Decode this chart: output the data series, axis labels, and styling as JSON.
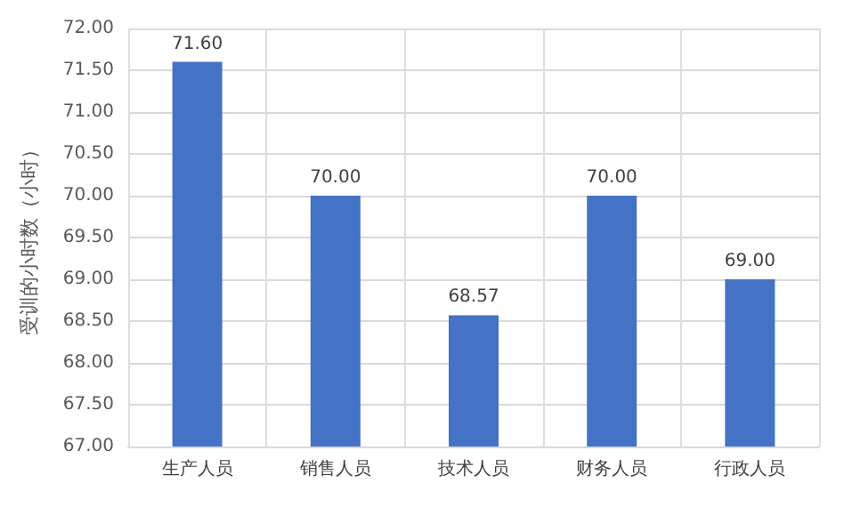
{
  "chart_data": {
    "type": "bar",
    "ylabel": "受训的小时数（小时）",
    "categories": [
      "生产人员",
      "销售人员",
      "技术人员",
      "财务人员",
      "行政人员"
    ],
    "values": [
      71.6,
      70,
      68.57,
      70,
      69
    ],
    "value_labels": [
      "71.60",
      "70.00",
      "68.57",
      "70.00",
      "69.00"
    ],
    "color": "#4472c4",
    "ylim": [
      67,
      72
    ],
    "yticks": [
      {
        "value": 67,
        "label": "67.00"
      },
      {
        "value": 67.5,
        "label": "67.50"
      },
      {
        "value": 68,
        "label": "68.00"
      },
      {
        "value": 68.5,
        "label": "68.50"
      },
      {
        "value": 69,
        "label": "69.00"
      },
      {
        "value": 69.5,
        "label": "69.50"
      },
      {
        "value": 70,
        "label": "70.00"
      },
      {
        "value": 70.5,
        "label": "70.50"
      },
      {
        "value": 71,
        "label": "71.00"
      },
      {
        "value": 71.5,
        "label": "71.50"
      },
      {
        "value": 72,
        "label": "72.00"
      }
    ],
    "grid": true
  }
}
